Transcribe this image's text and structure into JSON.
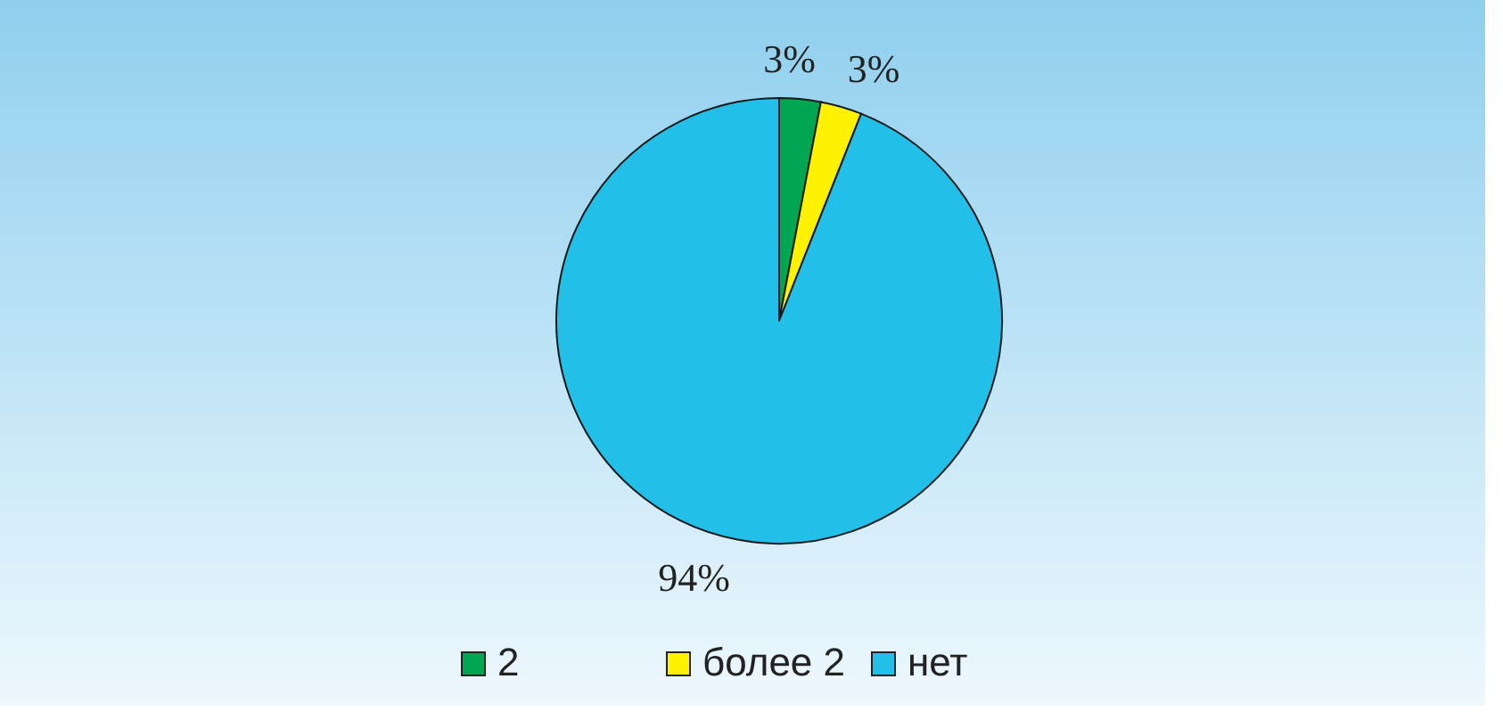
{
  "chart_data": {
    "type": "pie",
    "categories": [
      "2",
      "более 2",
      "нет"
    ],
    "values": [
      3,
      3,
      94
    ],
    "colors": [
      "#00a651",
      "#fff200",
      "#22c0e8"
    ],
    "value_labels": [
      "3%",
      "3%",
      "94%"
    ],
    "legend": "bottom"
  }
}
